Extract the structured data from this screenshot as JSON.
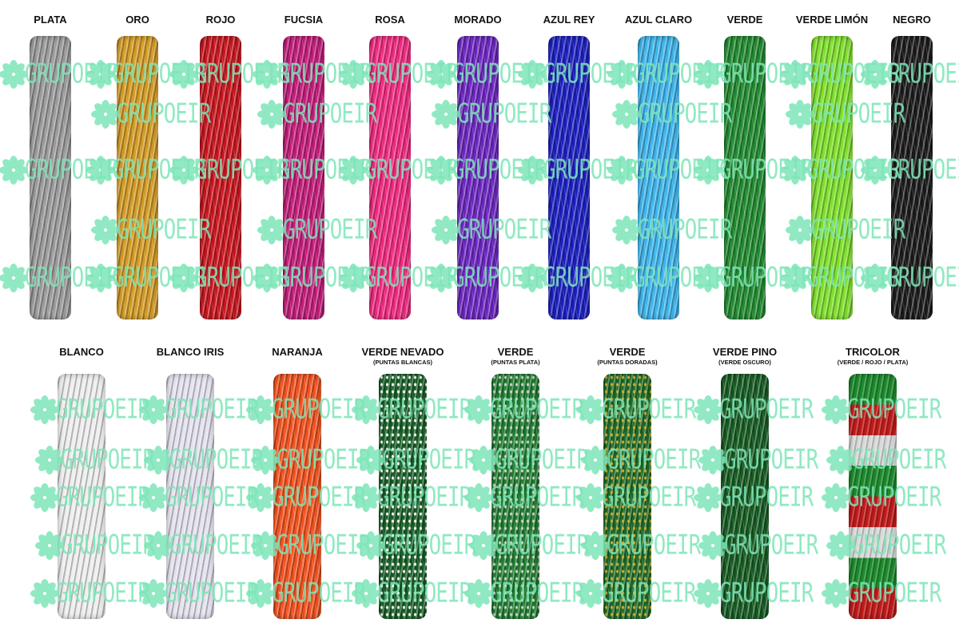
{
  "watermark": "GRUPOEIR",
  "rows": [
    {
      "items": [
        {
          "name": "PLATA",
          "color": "#9a9a9a"
        },
        {
          "name": "ORO",
          "color": "#d39a22"
        },
        {
          "name": "ROJO",
          "color": "#c8141c"
        },
        {
          "name": "FUCSIA",
          "color": "#c21a78"
        },
        {
          "name": "ROSA",
          "color": "#f0287f"
        },
        {
          "name": "MORADO",
          "color": "#6a24c0"
        },
        {
          "name": "AZUL REY",
          "color": "#1a1ec0"
        },
        {
          "name": "AZUL CLARO",
          "color": "#3cb4ec"
        },
        {
          "name": "VERDE",
          "color": "#1f8a2e"
        },
        {
          "name": "VERDE LIMÓN",
          "color": "#7ee02a"
        },
        {
          "name": "NEGRO",
          "color": "#1a1a1a"
        }
      ]
    },
    {
      "items": [
        {
          "name": "BLANCO",
          "color": "#eeeeee"
        },
        {
          "name": "BLANCO IRIS",
          "color": "#e4e2ee"
        },
        {
          "name": "NARANJA",
          "color": "#f2501c"
        },
        {
          "name": "VERDE NEVADO",
          "sub": "(PUNTAS BLANCAS)",
          "color": "#145c22",
          "tip_color": "#ffffff"
        },
        {
          "name": "VERDE",
          "sub": "(PUNTAS PLATA)",
          "color": "#1c7a2c",
          "tip_color": "#cfd8d0"
        },
        {
          "name": "VERDE",
          "sub": "(PUNTAS DORADAS)",
          "color": "#1a6a26",
          "tip_color": "#d8b030"
        },
        {
          "name": "VERDE PINO",
          "sub": "(VERDE OSCURO)",
          "color": "#145a20"
        },
        {
          "name": "TRICOLOR",
          "sub": "(VERDE / ROJO / PLATA)",
          "bands": [
            "#1c8a2c",
            "#c01a1a",
            "#d8d8d8"
          ]
        }
      ]
    }
  ]
}
